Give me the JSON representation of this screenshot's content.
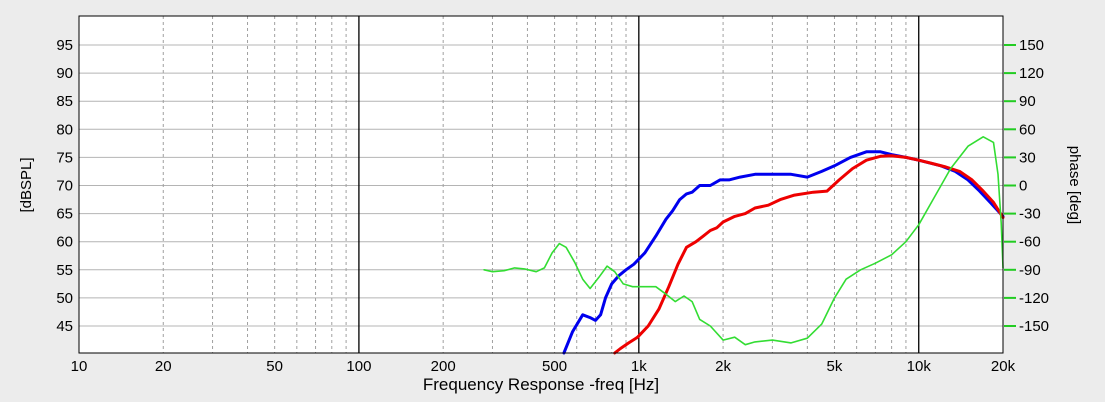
{
  "chart_data": {
    "type": "line",
    "title": "",
    "xlabel": "Frequency Response -freq [Hz]",
    "ylabel_left": "[dBSPL]",
    "ylabel_right": "phase [deg]",
    "x_scale": "log",
    "xlim": [
      10,
      20000
    ],
    "ylim_left": [
      40,
      100
    ],
    "ylim_right": [
      -180,
      180
    ],
    "x_ticks": [
      {
        "value": 10,
        "label": "10"
      },
      {
        "value": 20,
        "label": "20"
      },
      {
        "value": 50,
        "label": "50"
      },
      {
        "value": 100,
        "label": "100"
      },
      {
        "value": 200,
        "label": "200"
      },
      {
        "value": 500,
        "label": "500"
      },
      {
        "value": 1000,
        "label": "1k"
      },
      {
        "value": 2000,
        "label": "2k"
      },
      {
        "value": 5000,
        "label": "5k"
      },
      {
        "value": 10000,
        "label": "10k"
      },
      {
        "value": 20000,
        "label": "20k"
      }
    ],
    "y_ticks_left": [
      {
        "value": 45,
        "label": "45"
      },
      {
        "value": 50,
        "label": "50"
      },
      {
        "value": 55,
        "label": "55"
      },
      {
        "value": 60,
        "label": "60"
      },
      {
        "value": 65,
        "label": "65"
      },
      {
        "value": 70,
        "label": "70"
      },
      {
        "value": 75,
        "label": "75"
      },
      {
        "value": 80,
        "label": "80"
      },
      {
        "value": 85,
        "label": "85"
      },
      {
        "value": 90,
        "label": "90"
      },
      {
        "value": 95,
        "label": "95"
      }
    ],
    "y_ticks_right": [
      {
        "value": 150,
        "label": "150"
      },
      {
        "value": 120,
        "label": "120"
      },
      {
        "value": 90,
        "label": "90"
      },
      {
        "value": 60,
        "label": "60"
      },
      {
        "value": 30,
        "label": "30"
      },
      {
        "value": 0,
        "label": "0"
      },
      {
        "value": -30,
        "label": "-30"
      },
      {
        "value": -60,
        "label": "-60"
      },
      {
        "value": -90,
        "label": "-90"
      },
      {
        "value": -120,
        "label": "-120"
      },
      {
        "value": -150,
        "label": "-150"
      }
    ],
    "grid": true,
    "colors": {
      "background": "#ececec",
      "plot": "#ffffff",
      "phase_axis": "#22cc22"
    },
    "series": [
      {
        "axis": "left",
        "color": "#0000ee",
        "points": [
          [
            540,
            40
          ],
          [
            580,
            44
          ],
          [
            630,
            47
          ],
          [
            670,
            46.5
          ],
          [
            700,
            46
          ],
          [
            730,
            47
          ],
          [
            760,
            50
          ],
          [
            800,
            52.5
          ],
          [
            850,
            54
          ],
          [
            900,
            55
          ],
          [
            960,
            56
          ],
          [
            1050,
            58
          ],
          [
            1150,
            61
          ],
          [
            1250,
            64
          ],
          [
            1320,
            65.5
          ],
          [
            1400,
            67.5
          ],
          [
            1480,
            68.5
          ],
          [
            1550,
            68.8
          ],
          [
            1650,
            70
          ],
          [
            1800,
            70
          ],
          [
            1950,
            71
          ],
          [
            2100,
            71
          ],
          [
            2300,
            71.5
          ],
          [
            2600,
            72
          ],
          [
            3000,
            72
          ],
          [
            3500,
            72
          ],
          [
            4000,
            71.5
          ],
          [
            4500,
            72.5
          ],
          [
            5000,
            73.5
          ],
          [
            5700,
            75
          ],
          [
            6500,
            76
          ],
          [
            7300,
            76
          ],
          [
            8000,
            75.5
          ],
          [
            9000,
            75
          ],
          [
            10000,
            74.5
          ],
          [
            12000,
            73.5
          ],
          [
            13500,
            72.5
          ],
          [
            15000,
            71
          ],
          [
            16500,
            69
          ],
          [
            18000,
            67
          ],
          [
            20000,
            64.5
          ]
        ]
      },
      {
        "axis": "left",
        "color": "#ee0000",
        "points": [
          [
            820,
            40
          ],
          [
            860,
            41
          ],
          [
            920,
            42
          ],
          [
            990,
            43
          ],
          [
            1080,
            45
          ],
          [
            1180,
            48
          ],
          [
            1280,
            52
          ],
          [
            1380,
            56
          ],
          [
            1480,
            59
          ],
          [
            1600,
            60
          ],
          [
            1700,
            61
          ],
          [
            1800,
            62
          ],
          [
            1900,
            62.5
          ],
          [
            2000,
            63.5
          ],
          [
            2200,
            64.5
          ],
          [
            2400,
            65
          ],
          [
            2600,
            66
          ],
          [
            2900,
            66.5
          ],
          [
            3200,
            67.5
          ],
          [
            3600,
            68.3
          ],
          [
            4200,
            68.8
          ],
          [
            4700,
            69
          ],
          [
            5200,
            71
          ],
          [
            5800,
            73
          ],
          [
            6500,
            74.5
          ],
          [
            7300,
            75.2
          ],
          [
            8000,
            75.3
          ],
          [
            9000,
            75
          ],
          [
            10000,
            74.5
          ],
          [
            11000,
            74
          ],
          [
            12500,
            73.3
          ],
          [
            14000,
            72.5
          ],
          [
            15500,
            71
          ],
          [
            17000,
            69
          ],
          [
            18500,
            67
          ],
          [
            20000,
            64.3
          ]
        ]
      },
      {
        "axis": "right",
        "color": "#33dd33",
        "points": [
          [
            280,
            -90
          ],
          [
            300,
            -92
          ],
          [
            330,
            -91
          ],
          [
            360,
            -88
          ],
          [
            390,
            -89
          ],
          [
            430,
            -92
          ],
          [
            460,
            -88
          ],
          [
            490,
            -72
          ],
          [
            520,
            -62
          ],
          [
            550,
            -66
          ],
          [
            590,
            -82
          ],
          [
            630,
            -100
          ],
          [
            670,
            -110
          ],
          [
            720,
            -98
          ],
          [
            770,
            -86
          ],
          [
            820,
            -92
          ],
          [
            880,
            -105
          ],
          [
            950,
            -108
          ],
          [
            1050,
            -108
          ],
          [
            1150,
            -108
          ],
          [
            1250,
            -116
          ],
          [
            1350,
            -124
          ],
          [
            1450,
            -118
          ],
          [
            1550,
            -124
          ],
          [
            1650,
            -143
          ],
          [
            1800,
            -150
          ],
          [
            2000,
            -165
          ],
          [
            2200,
            -162
          ],
          [
            2400,
            -170
          ],
          [
            2600,
            -167
          ],
          [
            3000,
            -165
          ],
          [
            3500,
            -168
          ],
          [
            4000,
            -163
          ],
          [
            4500,
            -148
          ],
          [
            5000,
            -120
          ],
          [
            5500,
            -100
          ],
          [
            6200,
            -90
          ],
          [
            7000,
            -83
          ],
          [
            8000,
            -74
          ],
          [
            9000,
            -60
          ],
          [
            10000,
            -42
          ],
          [
            11500,
            -10
          ],
          [
            13000,
            18
          ],
          [
            15000,
            42
          ],
          [
            17000,
            52
          ],
          [
            18500,
            46
          ],
          [
            19200,
            12
          ],
          [
            19700,
            -40
          ],
          [
            20000,
            -88
          ]
        ]
      }
    ]
  }
}
